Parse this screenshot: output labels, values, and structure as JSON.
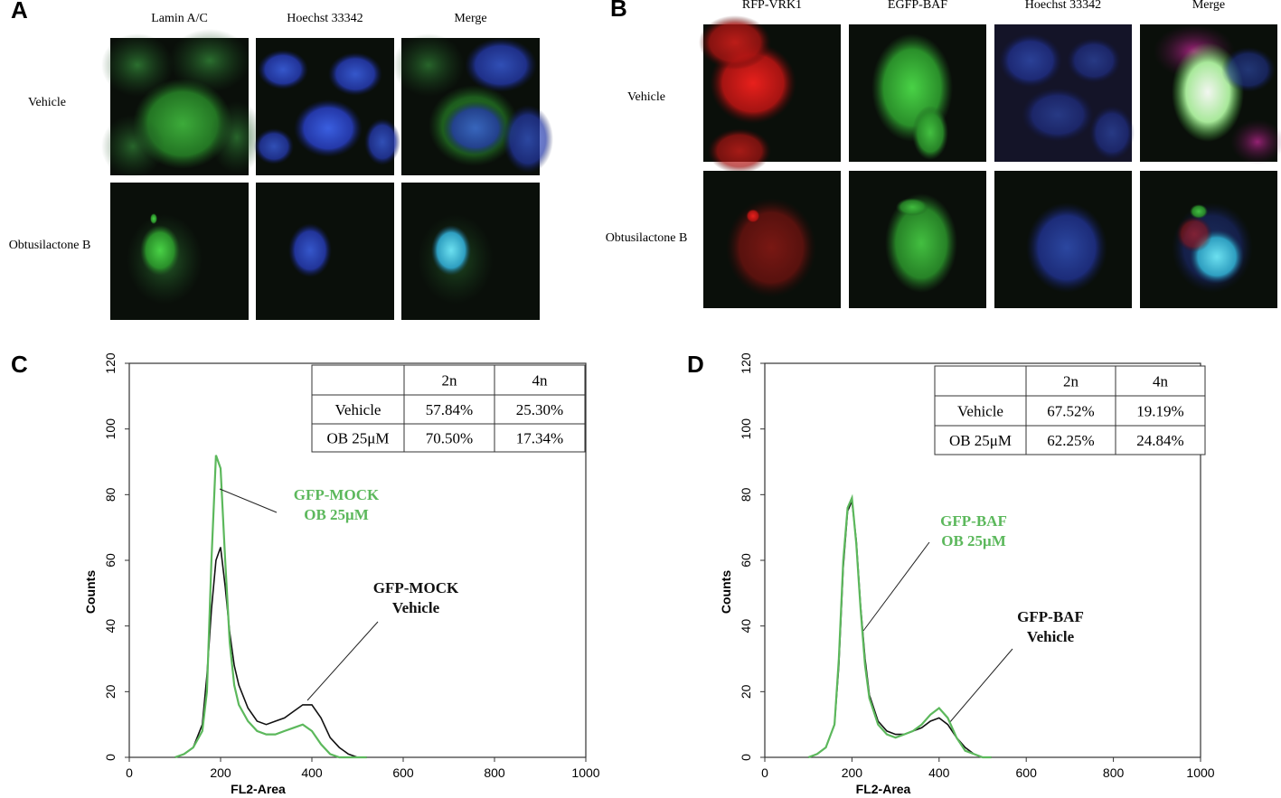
{
  "figure": {
    "panels": [
      {
        "label": "A",
        "columns": [
          "Lamin A/C",
          "Hoechst 33342",
          "Merge"
        ],
        "rows": [
          "Vehicle",
          "Obtusilactone  B"
        ]
      },
      {
        "label": "B",
        "columns": [
          "RFP-VRK1",
          "EGFP-BAF",
          "Hoechst 33342",
          "Merge"
        ],
        "rows": [
          "Vehicle",
          "Obtusilactone  B"
        ]
      }
    ]
  },
  "chart_data": [
    {
      "type": "line",
      "panel_label": "C",
      "xlabel": "FL2-Area",
      "ylabel": "Counts",
      "xlim": [
        0,
        1000
      ],
      "ylim": [
        0,
        120
      ],
      "xticks": [
        0,
        200,
        400,
        600,
        800,
        1000
      ],
      "yticks": [
        0,
        20,
        40,
        60,
        80,
        100,
        120
      ],
      "x": [
        100,
        120,
        140,
        160,
        170,
        180,
        190,
        200,
        210,
        220,
        230,
        240,
        260,
        280,
        300,
        320,
        340,
        360,
        380,
        400,
        420,
        440,
        460,
        480,
        500,
        520
      ],
      "series": [
        {
          "name_lines": [
            "GFP-MOCK",
            "Vehicle"
          ],
          "color": "#111111",
          "values": [
            0,
            1,
            3,
            10,
            25,
            45,
            60,
            64,
            52,
            38,
            28,
            22,
            15,
            11,
            10,
            11,
            12,
            14,
            16,
            16,
            12,
            6,
            3,
            1,
            0,
            0
          ]
        },
        {
          "name_lines": [
            "GFP-MOCK",
            "OB 25μM"
          ],
          "color": "#5cb85c",
          "values": [
            0,
            1,
            3,
            8,
            20,
            60,
            92,
            88,
            60,
            35,
            22,
            16,
            11,
            8,
            7,
            7,
            8,
            9,
            10,
            8,
            4,
            1,
            0,
            0,
            0,
            0
          ]
        }
      ],
      "table": {
        "header": [
          "2n",
          "4n"
        ],
        "rows": [
          {
            "label": "Vehicle",
            "cells": [
              "57.84%",
              "25.30%"
            ]
          },
          {
            "label": "OB 25μM",
            "cells": [
              "70.50%",
              "17.34%"
            ]
          }
        ]
      }
    },
    {
      "type": "line",
      "panel_label": "D",
      "xlabel": "FL2-Area",
      "ylabel": "Counts",
      "xlim": [
        0,
        1000
      ],
      "ylim": [
        0,
        120
      ],
      "xticks": [
        0,
        200,
        400,
        600,
        800,
        1000
      ],
      "yticks": [
        0,
        20,
        40,
        60,
        80,
        100,
        120
      ],
      "x": [
        100,
        120,
        140,
        160,
        170,
        180,
        190,
        200,
        210,
        220,
        230,
        240,
        260,
        280,
        300,
        320,
        340,
        360,
        380,
        400,
        420,
        440,
        460,
        480,
        500,
        520
      ],
      "series": [
        {
          "name_lines": [
            "GFP-BAF",
            "Vehicle"
          ],
          "color": "#111111",
          "values": [
            0,
            1,
            3,
            10,
            28,
            58,
            75,
            78,
            66,
            46,
            30,
            19,
            11,
            8,
            7,
            7,
            8,
            9,
            11,
            12,
            10,
            6,
            3,
            1,
            0,
            0
          ]
        },
        {
          "name_lines": [
            "GFP-BAF",
            "OB 25μM"
          ],
          "color": "#5cb85c",
          "values": [
            0,
            1,
            3,
            10,
            30,
            60,
            76,
            79,
            65,
            45,
            28,
            18,
            10,
            7,
            6,
            7,
            8,
            10,
            13,
            15,
            12,
            6,
            2,
            1,
            0,
            0
          ]
        }
      ],
      "table": {
        "header": [
          "2n",
          "4n"
        ],
        "rows": [
          {
            "label": "Vehicle",
            "cells": [
              "67.52%",
              "19.19%"
            ]
          },
          {
            "label": "OB 25μM",
            "cells": [
              "62.25%",
              "24.84%"
            ]
          }
        ]
      }
    }
  ]
}
